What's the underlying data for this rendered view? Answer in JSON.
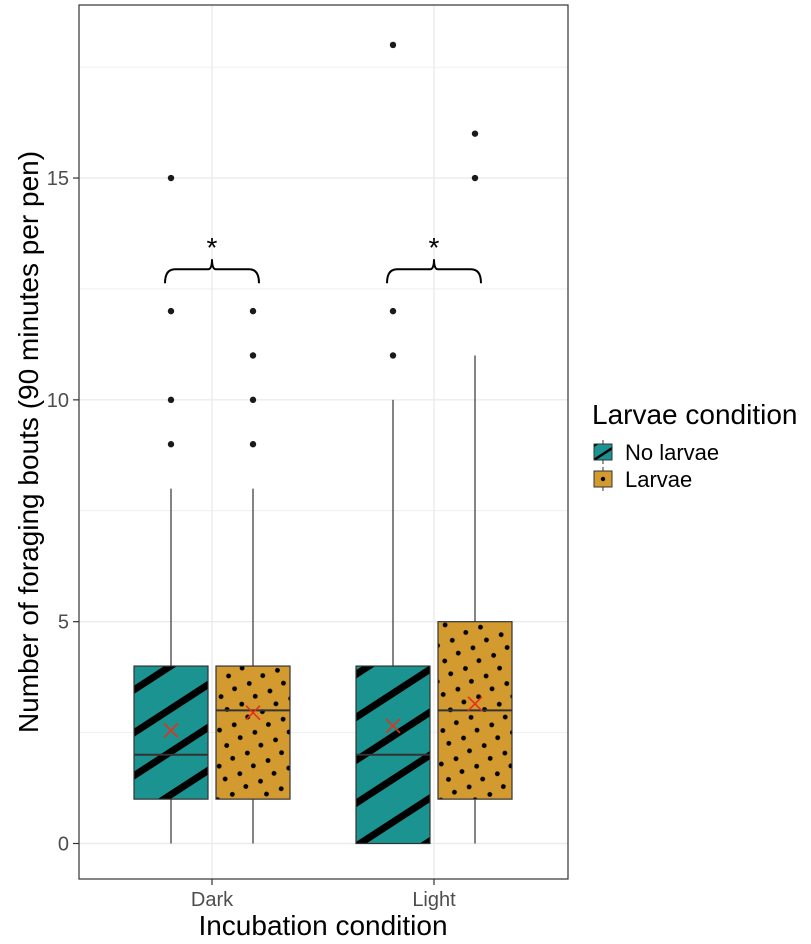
{
  "chart_data": {
    "type": "box",
    "xlabel": "Incubation condition",
    "ylabel": "Number of foraging bouts (90 minutes per pen)",
    "categories": [
      "Dark",
      "Light"
    ],
    "y_ticks": [
      0,
      5,
      10,
      15
    ],
    "ylim": [
      -0.8,
      18.9
    ],
    "grid": true,
    "legend": {
      "title": "Larvae condition",
      "position": "right",
      "items": [
        "No larvae",
        "Larvae"
      ]
    },
    "series": [
      {
        "name": "No larvae",
        "color": "#1a9391",
        "pattern": "stripes",
        "boxes": [
          {
            "category": "Dark",
            "min": 0,
            "q1": 1,
            "median": 2,
            "q3": 4,
            "max": 8,
            "mean": 2.55,
            "outliers": [
              9,
              10,
              12,
              15
            ]
          },
          {
            "category": "Light",
            "min": 0,
            "q1": 0,
            "median": 2,
            "q3": 4,
            "max": 10,
            "mean": 2.65,
            "outliers": [
              11,
              12,
              18
            ]
          }
        ]
      },
      {
        "name": "Larvae",
        "color": "#d39a30",
        "pattern": "dots",
        "boxes": [
          {
            "category": "Dark",
            "min": 0,
            "q1": 1,
            "median": 3,
            "q3": 4,
            "max": 8,
            "mean": 2.95,
            "outliers": [
              9,
              10,
              11,
              12
            ]
          },
          {
            "category": "Light",
            "min": 0,
            "q1": 1,
            "median": 3,
            "q3": 5,
            "max": 11,
            "mean": 3.15,
            "outliers": [
              15,
              16
            ]
          }
        ]
      }
    ],
    "annotations": [
      {
        "category": "Dark",
        "text": "*",
        "y": 12.9
      },
      {
        "category": "Light",
        "text": "*",
        "y": 12.9
      }
    ],
    "colors": {
      "mean_marker": "#e4311c",
      "grid": "#ebebeb",
      "panel_border": "#333333"
    }
  }
}
